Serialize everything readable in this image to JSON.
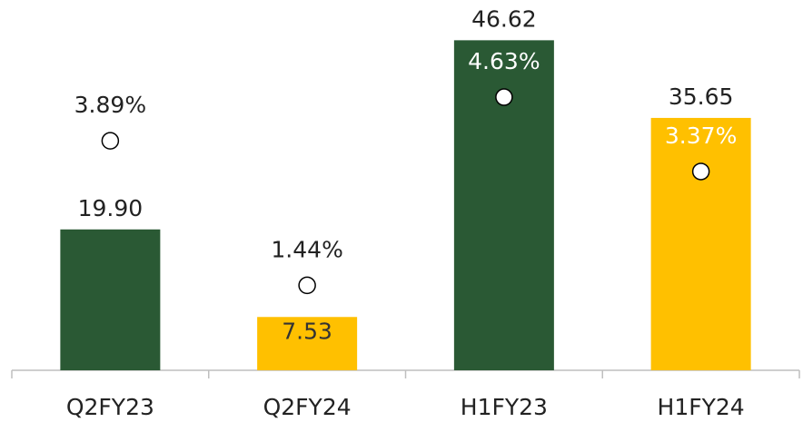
{
  "chart_data": {
    "type": "bar",
    "categories": [
      "Q2FY23",
      "Q2FY24",
      "H1FY23",
      "H1FY24"
    ],
    "series": [
      {
        "colors": [
          "#2a5934",
          "#ffc000",
          "#2a5934",
          "#ffc000"
        ],
        "values": [
          19.9,
          7.53,
          46.62,
          35.65
        ],
        "value_labels": [
          "19.90",
          "7.53",
          "46.62",
          "35.65"
        ]
      },
      {
        "type": "scatter",
        "axis": "y2",
        "color": "#ffffff",
        "values": [
          3.89,
          1.44,
          4.63,
          3.37
        ],
        "value_labels": [
          "3.89%",
          "1.44%",
          "4.63%",
          "3.37%"
        ]
      }
    ],
    "ylim": [
      0,
      50
    ],
    "y2lim": [
      0,
      6
    ]
  }
}
